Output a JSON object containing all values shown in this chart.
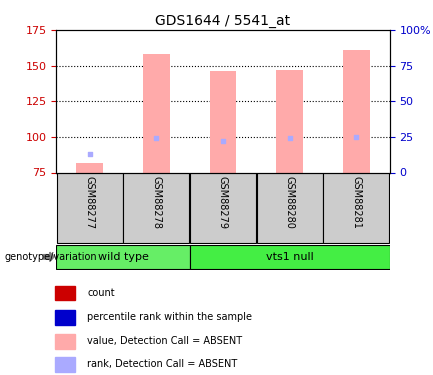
{
  "title": "GDS1644 / 5541_at",
  "samples": [
    "GSM88277",
    "GSM88278",
    "GSM88279",
    "GSM88280",
    "GSM88281"
  ],
  "groups": [
    "wild type",
    "wild type",
    "vts1 null",
    "vts1 null",
    "vts1 null"
  ],
  "group_colors": {
    "wild type": "#66dd66",
    "vts1 null": "#44ee44"
  },
  "ylim_left": [
    75,
    175
  ],
  "ylim_right": [
    0,
    100
  ],
  "yticks_left": [
    75,
    100,
    125,
    150,
    175
  ],
  "yticks_right": [
    0,
    25,
    50,
    75,
    100
  ],
  "ytick_labels_right": [
    "0",
    "25",
    "50",
    "75",
    "100%"
  ],
  "pink_bar_values": [
    82,
    158,
    146,
    147,
    161
  ],
  "pink_bar_bottom": 75,
  "blue_square_values": [
    88,
    99,
    97,
    99,
    100
  ],
  "gsm88277_absent": true,
  "pink_color": "#ffaaaa",
  "blue_color": "#aaaaff",
  "red_color": "#cc0000",
  "left_axis_color": "#cc0000",
  "right_axis_color": "#0000cc",
  "grid_color": "black",
  "legend_items": [
    {
      "color": "#cc0000",
      "label": "count"
    },
    {
      "color": "#0000cc",
      "label": "percentile rank within the sample"
    },
    {
      "color": "#ffaaaa",
      "label": "value, Detection Call = ABSENT"
    },
    {
      "color": "#aaaaff",
      "label": "rank, Detection Call = ABSENT"
    }
  ],
  "bar_width": 0.4,
  "plot_bg": "#ffffff",
  "label_area_bg": "#cccccc",
  "group_label": "genotype/variation"
}
